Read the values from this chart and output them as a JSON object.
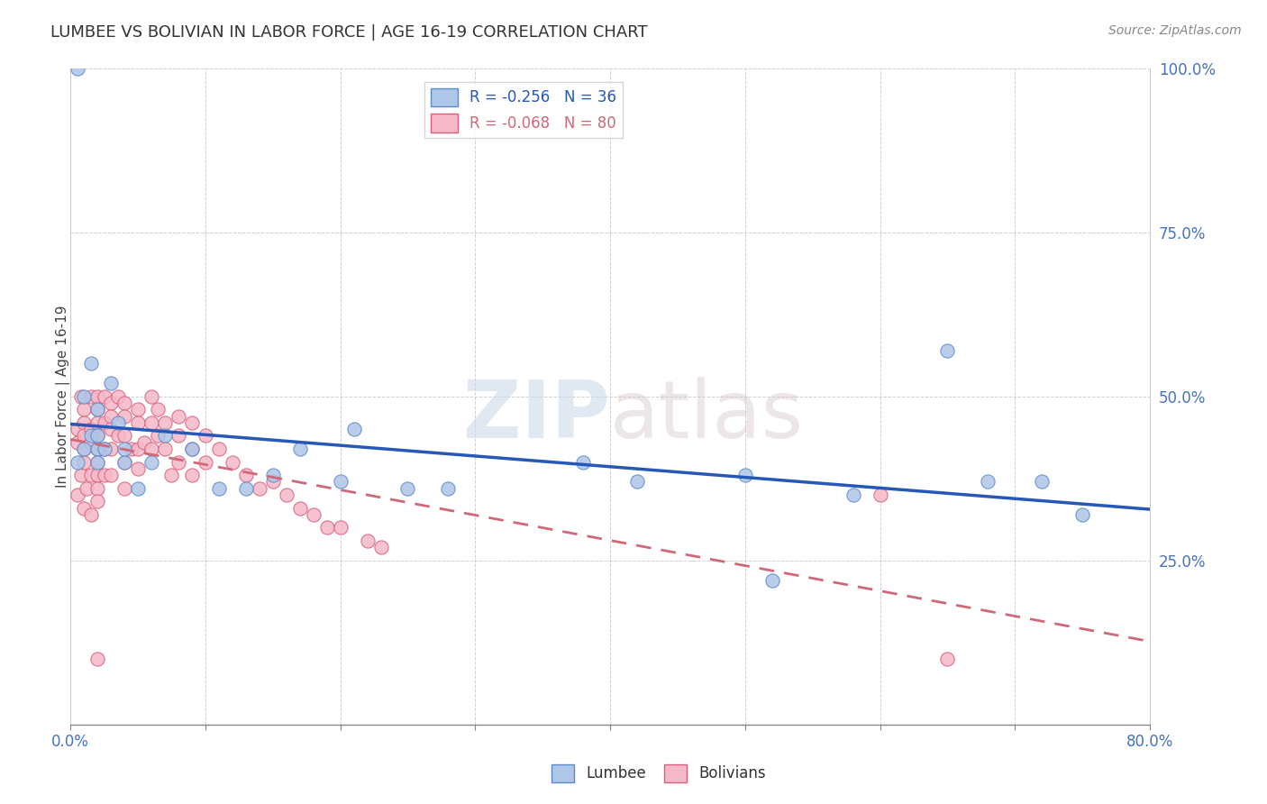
{
  "title": "LUMBEE VS BOLIVIAN IN LABOR FORCE | AGE 16-19 CORRELATION CHART",
  "source_text": "Source: ZipAtlas.com",
  "ylabel": "In Labor Force | Age 16-19",
  "xlim": [
    0.0,
    0.8
  ],
  "ylim": [
    0.0,
    1.0
  ],
  "xticks": [
    0.0,
    0.1,
    0.2,
    0.3,
    0.4,
    0.5,
    0.6,
    0.7,
    0.8
  ],
  "xticklabels": [
    "0.0%",
    "",
    "",
    "",
    "",
    "",
    "",
    "",
    "80.0%"
  ],
  "yticks": [
    0.0,
    0.25,
    0.5,
    0.75,
    1.0
  ],
  "yticklabels_right": [
    "",
    "25.0%",
    "50.0%",
    "75.0%",
    "100.0%"
  ],
  "lumbee_color": "#aec6e8",
  "bolivian_color": "#f5b8c8",
  "lumbee_edge": "#5b8cc8",
  "bolivian_edge": "#d9607a",
  "trend_lumbee_color": "#2558b8",
  "trend_bolivian_color": "#d06878",
  "R_lumbee": -0.256,
  "N_lumbee": 36,
  "R_bolivian": -0.068,
  "N_bolivian": 80,
  "watermark": "ZIPatlas",
  "lumbee_x": [
    0.005,
    0.01,
    0.01,
    0.015,
    0.015,
    0.02,
    0.02,
    0.02,
    0.02,
    0.025,
    0.03,
    0.035,
    0.04,
    0.04,
    0.05,
    0.06,
    0.07,
    0.09,
    0.11,
    0.13,
    0.15,
    0.17,
    0.2,
    0.21,
    0.25,
    0.28,
    0.38,
    0.42,
    0.5,
    0.52,
    0.58,
    0.65,
    0.68,
    0.72,
    0.75,
    0.005
  ],
  "lumbee_y": [
    0.4,
    0.42,
    0.5,
    0.55,
    0.44,
    0.42,
    0.4,
    0.48,
    0.44,
    0.42,
    0.52,
    0.46,
    0.4,
    0.42,
    0.36,
    0.4,
    0.44,
    0.42,
    0.36,
    0.36,
    0.38,
    0.42,
    0.37,
    0.45,
    0.36,
    0.36,
    0.4,
    0.37,
    0.38,
    0.22,
    0.35,
    0.57,
    0.37,
    0.37,
    0.32,
    1.0
  ],
  "bolivian_x": [
    0.005,
    0.005,
    0.005,
    0.008,
    0.008,
    0.01,
    0.01,
    0.01,
    0.01,
    0.01,
    0.01,
    0.012,
    0.015,
    0.015,
    0.015,
    0.015,
    0.015,
    0.018,
    0.02,
    0.02,
    0.02,
    0.02,
    0.02,
    0.02,
    0.02,
    0.02,
    0.02,
    0.02,
    0.025,
    0.025,
    0.025,
    0.025,
    0.03,
    0.03,
    0.03,
    0.03,
    0.03,
    0.035,
    0.035,
    0.04,
    0.04,
    0.04,
    0.04,
    0.04,
    0.045,
    0.05,
    0.05,
    0.05,
    0.05,
    0.055,
    0.06,
    0.06,
    0.06,
    0.065,
    0.065,
    0.07,
    0.07,
    0.075,
    0.08,
    0.08,
    0.08,
    0.09,
    0.09,
    0.09,
    0.1,
    0.1,
    0.11,
    0.12,
    0.13,
    0.14,
    0.15,
    0.16,
    0.17,
    0.18,
    0.19,
    0.2,
    0.22,
    0.23,
    0.6,
    0.65
  ],
  "bolivian_y": [
    0.45,
    0.43,
    0.35,
    0.5,
    0.38,
    0.48,
    0.46,
    0.44,
    0.42,
    0.4,
    0.33,
    0.36,
    0.5,
    0.45,
    0.43,
    0.38,
    0.32,
    0.44,
    0.5,
    0.48,
    0.46,
    0.44,
    0.42,
    0.4,
    0.38,
    0.36,
    0.34,
    0.1,
    0.5,
    0.46,
    0.42,
    0.38,
    0.49,
    0.47,
    0.45,
    0.42,
    0.38,
    0.5,
    0.44,
    0.49,
    0.47,
    0.44,
    0.4,
    0.36,
    0.42,
    0.48,
    0.46,
    0.42,
    0.39,
    0.43,
    0.5,
    0.46,
    0.42,
    0.48,
    0.44,
    0.46,
    0.42,
    0.38,
    0.47,
    0.44,
    0.4,
    0.46,
    0.42,
    0.38,
    0.44,
    0.4,
    0.42,
    0.4,
    0.38,
    0.36,
    0.37,
    0.35,
    0.33,
    0.32,
    0.3,
    0.3,
    0.28,
    0.27,
    0.35,
    0.1
  ]
}
